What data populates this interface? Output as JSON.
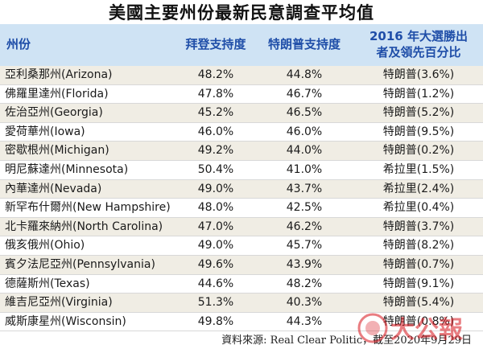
{
  "title": "美國主要州份最新民意調查平均值",
  "headers": {
    "state": "州份",
    "biden": "拜登支持度",
    "trump": "特朗普支持度",
    "result_2016_line1": "2016 年大選勝出",
    "result_2016_line2": "者及領先百分比"
  },
  "rows": [
    {
      "state": "亞利桑那州(Arizona)",
      "biden": "48.2%",
      "trump": "44.8%",
      "result_2016": "特朗普(3.6%)"
    },
    {
      "state": "佛羅里達州(Florida)",
      "biden": "47.8%",
      "trump": "46.7%",
      "result_2016": "特朗普(1.2%)"
    },
    {
      "state": "佐治亞州(Georgia)",
      "biden": "45.2%",
      "trump": "46.5%",
      "result_2016": "特朗普(5.2%)"
    },
    {
      "state": "愛荷華州(Iowa)",
      "biden": "46.0%",
      "trump": "46.0%",
      "result_2016": "特朗普(9.5%)"
    },
    {
      "state": "密歇根州(Michigan)",
      "biden": "49.2%",
      "trump": "44.0%",
      "result_2016": "特朗普(0.2%)"
    },
    {
      "state": "明尼蘇達州(Minnesota)",
      "biden": "50.4%",
      "trump": "41.0%",
      "result_2016": "希拉里(1.5%)"
    },
    {
      "state": "內華達州(Nevada)",
      "biden": "49.0%",
      "trump": "43.7%",
      "result_2016": "希拉里(2.4%)"
    },
    {
      "state": "新罕布什爾州(New Hampshire)",
      "biden": "48.0%",
      "trump": "42.5%",
      "result_2016": "希拉里(0.4%)"
    },
    {
      "state": "北卡羅來納州(North Carolina)",
      "biden": "47.0%",
      "trump": "46.2%",
      "result_2016": "特朗普(3.7%)"
    },
    {
      "state": "俄亥俄州(Ohio)",
      "biden": "49.0%",
      "trump": "45.7%",
      "result_2016": "特朗普(8.2%)"
    },
    {
      "state": "賓夕法尼亞州(Pennsylvania)",
      "biden": "49.6%",
      "trump": "43.9%",
      "result_2016": "特朗普(0.7%)"
    },
    {
      "state": "德薩斯州(Texas)",
      "biden": "44.6%",
      "trump": "48.2%",
      "result_2016": "特朗普(9.1%)"
    },
    {
      "state": "維吉尼亞州(Virginia)",
      "biden": "51.3%",
      "trump": "40.3%",
      "result_2016": "特朗普(5.4%)"
    },
    {
      "state": "威斯康星州(Wisconsin)",
      "biden": "49.8%",
      "trump": "44.3%",
      "result_2016": "特朗普(0.8%)"
    }
  ],
  "source": "資料來源: Real Clear Politic，截至2020年9月29日",
  "watermark_text": "大公報",
  "colors": {
    "header_bg": "#cfe3f4",
    "header_text": "#1f4ea8",
    "odd_row_bg": "#f0ede4",
    "watermark_red": "#d8141c"
  }
}
